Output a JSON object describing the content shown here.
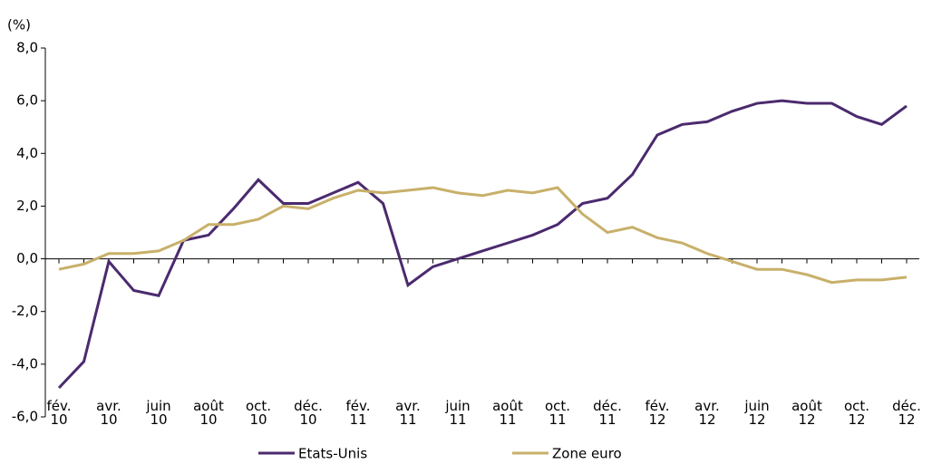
{
  "chart_data": {
    "type": "line",
    "y_label": "(%)",
    "categories": [
      "fév.\n10",
      null,
      "avr.\n10",
      null,
      "juin\n10",
      null,
      "août\n10",
      null,
      "oct.\n10",
      null,
      "déc.\n10",
      null,
      "fév.\n11",
      null,
      "avr.\n11",
      null,
      "juin\n11",
      null,
      "août\n11",
      null,
      "oct.\n11",
      null,
      "déc.\n11",
      null,
      "fév.\n12",
      null,
      "avr.\n12",
      null,
      "juin\n12",
      null,
      "août\n12",
      null,
      "oct.\n12",
      null,
      "déc.\n12"
    ],
    "series": [
      {
        "name": "Etats-Unis",
        "color": "#4b2a6e",
        "values": [
          -4.9,
          -3.9,
          -0.1,
          -1.2,
          -1.4,
          0.7,
          0.9,
          1.9,
          3.0,
          2.1,
          2.1,
          2.5,
          2.9,
          2.1,
          -1.0,
          -0.3,
          0.0,
          0.3,
          0.6,
          0.9,
          1.3,
          2.1,
          2.3,
          3.2,
          4.7,
          5.1,
          5.2,
          5.6,
          5.9,
          6.0,
          5.9,
          5.9,
          5.4,
          5.1,
          5.8
        ]
      },
      {
        "name": "Zone euro",
        "color": "#c8b06a",
        "values": [
          -0.4,
          -0.2,
          0.2,
          0.2,
          0.3,
          0.7,
          1.3,
          1.3,
          1.5,
          2.0,
          1.9,
          2.3,
          2.6,
          2.5,
          2.6,
          2.7,
          2.5,
          2.4,
          2.6,
          2.5,
          2.7,
          1.7,
          1.0,
          1.2,
          0.8,
          0.6,
          0.2,
          -0.1,
          -0.4,
          -0.4,
          -0.6,
          -0.9,
          -0.8,
          -0.8,
          -0.7
        ]
      }
    ],
    "ylim": [
      -6,
      8
    ],
    "yticks": [
      {
        "value": -6,
        "label": "-6,0"
      },
      {
        "value": -4,
        "label": "-4,0"
      },
      {
        "value": -2,
        "label": "-2,0"
      },
      {
        "value": 0,
        "label": "0,0"
      },
      {
        "value": 2,
        "label": "2,0"
      },
      {
        "value": 4,
        "label": "4,0"
      },
      {
        "value": 6,
        "label": "6,0"
      },
      {
        "value": 8,
        "label": "8,0"
      }
    ],
    "legend": "bottom"
  }
}
